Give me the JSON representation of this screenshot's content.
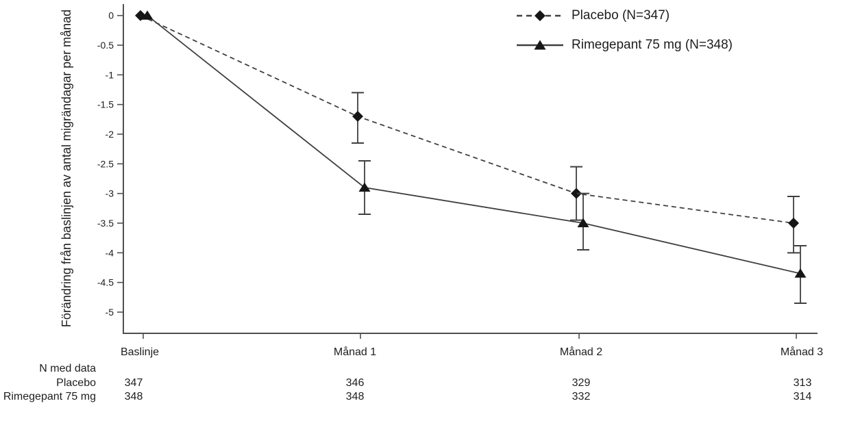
{
  "chart_data": {
    "type": "line",
    "title": "",
    "xlabel": "",
    "ylabel": "Förändring från baslinjen av antal migrändagar per månad",
    "categories": [
      "Baslinje",
      "Månad 1",
      "Månad 2",
      "Månad 3"
    ],
    "ylim": [
      -5.3,
      0.15
    ],
    "yticks": [
      0,
      -0.5,
      -1,
      -1.5,
      -2,
      -2.5,
      -3,
      -3.5,
      -4,
      -4.5,
      -5
    ],
    "grid": false,
    "legend_position": "top-right",
    "error_bars": true,
    "series": [
      {
        "name": "placebo",
        "label": "Placebo (N=347)",
        "line_style": "dashed",
        "marker": "diamond",
        "values": [
          0,
          -1.7,
          -3.0,
          -3.5
        ],
        "ci_high": [
          null,
          -1.3,
          -2.55,
          -3.05
        ],
        "ci_low": [
          null,
          -2.15,
          -3.45,
          -4.0
        ]
      },
      {
        "name": "rimegepant",
        "label": "Rimegepant 75 mg (N=348)",
        "line_style": "solid",
        "marker": "triangle",
        "values": [
          0,
          -2.9,
          -3.5,
          -4.35
        ],
        "ci_high": [
          null,
          -2.45,
          -3.0,
          -3.88
        ],
        "ci_low": [
          null,
          -3.35,
          -3.95,
          -4.85
        ]
      }
    ]
  },
  "n_table": {
    "header": "N med data",
    "rows": [
      {
        "label": "Placebo",
        "values": [
          "347",
          "346",
          "329",
          "313"
        ]
      },
      {
        "label": "Rimegepant 75 mg",
        "values": [
          "348",
          "348",
          "332",
          "314"
        ]
      }
    ]
  },
  "colors": {
    "line": "#3f3f3f",
    "marker": "#161616",
    "axis": "#4f4f4f",
    "text": "#1d1d1d"
  }
}
